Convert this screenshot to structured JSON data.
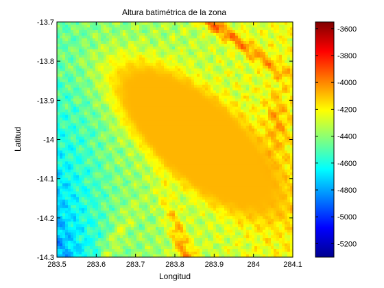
{
  "chart_data": {
    "type": "heatmap",
    "title": "Altura batimétrica de la zona",
    "xlabel": "Longitud",
    "ylabel": "Latitud",
    "xlim": [
      283.5,
      284.1
    ],
    "ylim": [
      -14.3,
      -13.7
    ],
    "x_ticks": [
      283.5,
      283.6,
      283.7,
      283.8,
      283.9,
      284,
      284.1
    ],
    "x_tick_labels": [
      "283.5",
      "283.6",
      "283.7",
      "283.8",
      "283.9",
      "284",
      "284.1"
    ],
    "y_ticks": [
      -13.7,
      -13.8,
      -13.9,
      -14,
      -14.1,
      -14.2,
      -14.3
    ],
    "y_tick_labels": [
      "-13.7",
      "-13.8",
      "-13.9",
      "-14",
      "-14.1",
      "-14.2",
      "-14.3"
    ],
    "colormap": "jet",
    "clim": [
      -5300,
      -3550
    ],
    "colorbar_ticks": [
      -3600,
      -3800,
      -4000,
      -4200,
      -4400,
      -4600,
      -4800,
      -5000,
      -5200
    ],
    "colorbar_tick_labels": [
      "-3600",
      "-3800",
      "-4000",
      "-4200",
      "-4400",
      "-4600",
      "-4800",
      "-5000",
      "-5200"
    ],
    "grid": false
  }
}
